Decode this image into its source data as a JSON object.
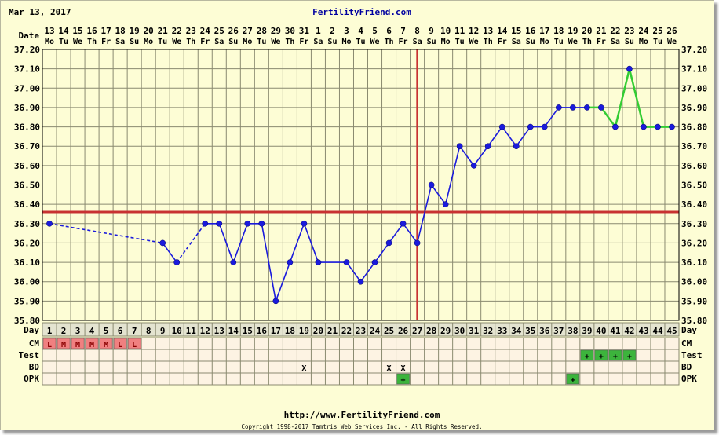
{
  "header": {
    "date_label": "Mar 13, 2017",
    "site_title": "FertilityFriend.com"
  },
  "footer": {
    "url": "http://www.FertilityFriend.com",
    "copyright": "Copyright 1998-2017 Tamtris Web Services Inc. - All Rights Reserved."
  },
  "chart_data": {
    "type": "line",
    "ylim": [
      35.8,
      37.2
    ],
    "y_ticks": [
      "35.80",
      "35.90",
      "36.00",
      "36.10",
      "36.20",
      "36.30",
      "36.40",
      "36.50",
      "36.60",
      "36.70",
      "36.80",
      "36.90",
      "37.00",
      "37.10",
      "37.20"
    ],
    "row_labels": {
      "date": "Date",
      "day": "Day",
      "cm": "CM",
      "test": "Test",
      "bd": "BD",
      "opk": "OPK"
    },
    "dates": [
      "13",
      "14",
      "15",
      "16",
      "17",
      "18",
      "19",
      "20",
      "21",
      "22",
      "23",
      "24",
      "25",
      "26",
      "27",
      "28",
      "29",
      "30",
      "31",
      "1",
      "2",
      "3",
      "4",
      "5",
      "6",
      "7",
      "8",
      "9",
      "10",
      "11",
      "12",
      "13",
      "14",
      "15",
      "16",
      "17",
      "18",
      "19",
      "20",
      "21",
      "22",
      "23",
      "24",
      "25",
      "26"
    ],
    "weekdays": [
      "Mo",
      "Tu",
      "We",
      "Th",
      "Fr",
      "Sa",
      "Su",
      "Mo",
      "Tu",
      "We",
      "Th",
      "Fr",
      "Sa",
      "Su",
      "Mo",
      "Tu",
      "We",
      "Th",
      "Fr",
      "Sa",
      "Su",
      "Mo",
      "Tu",
      "We",
      "Th",
      "Fr",
      "Sa",
      "Su",
      "Mo",
      "Tu",
      "We",
      "Th",
      "Fr",
      "Sa",
      "Su",
      "Mo",
      "Tu",
      "We",
      "Th",
      "Fr",
      "Sa",
      "Su",
      "Mo",
      "Tu",
      "We"
    ],
    "days": [
      1,
      2,
      3,
      4,
      5,
      6,
      7,
      8,
      9,
      10,
      11,
      12,
      13,
      14,
      15,
      16,
      17,
      18,
      19,
      20,
      21,
      22,
      23,
      24,
      25,
      26,
      27,
      28,
      29,
      30,
      31,
      32,
      33,
      34,
      35,
      36,
      37,
      38,
      39,
      40,
      41,
      42,
      43,
      44,
      45
    ],
    "temps": [
      36.3,
      null,
      null,
      null,
      null,
      null,
      null,
      null,
      36.2,
      36.1,
      null,
      36.3,
      36.3,
      36.1,
      36.3,
      36.3,
      35.9,
      36.1,
      36.3,
      36.1,
      null,
      36.1,
      36.0,
      36.1,
      36.2,
      36.3,
      36.2,
      36.5,
      36.4,
      36.7,
      36.6,
      36.7,
      36.8,
      36.7,
      36.8,
      36.8,
      36.9,
      36.9,
      36.9,
      36.9,
      36.8,
      37.1,
      36.8,
      36.8,
      36.8
    ],
    "interpolated_segments": [
      [
        1,
        9
      ],
      [
        10,
        12
      ]
    ],
    "pregnancy_segment_from_day": 39,
    "coverline": 36.36,
    "ovulation_day": 27,
    "colors": {
      "background": "#fdfdd5",
      "grid": "#8a8a70",
      "temp_line": "#1a1adc",
      "pregnant_line": "#33cc33",
      "coverline": "#c83232",
      "cm_bg": "#f08080",
      "test_bg": "#3cb43c",
      "opk_bg": "#3cb43c"
    },
    "cm": [
      {
        "day": 1,
        "label": "L"
      },
      {
        "day": 2,
        "label": "M"
      },
      {
        "day": 3,
        "label": "M"
      },
      {
        "day": 4,
        "label": "M"
      },
      {
        "day": 5,
        "label": "M"
      },
      {
        "day": 6,
        "label": "L"
      },
      {
        "day": 7,
        "label": "L"
      }
    ],
    "test": [
      {
        "day": 39,
        "label": "+"
      },
      {
        "day": 40,
        "label": "+"
      },
      {
        "day": 41,
        "label": "+"
      },
      {
        "day": 42,
        "label": "+"
      }
    ],
    "bd": [
      {
        "day": 19,
        "label": "X"
      },
      {
        "day": 25,
        "label": "X"
      },
      {
        "day": 26,
        "label": "X"
      }
    ],
    "opk": [
      {
        "day": 26,
        "label": "+"
      },
      {
        "day": 38,
        "label": "+"
      }
    ]
  }
}
